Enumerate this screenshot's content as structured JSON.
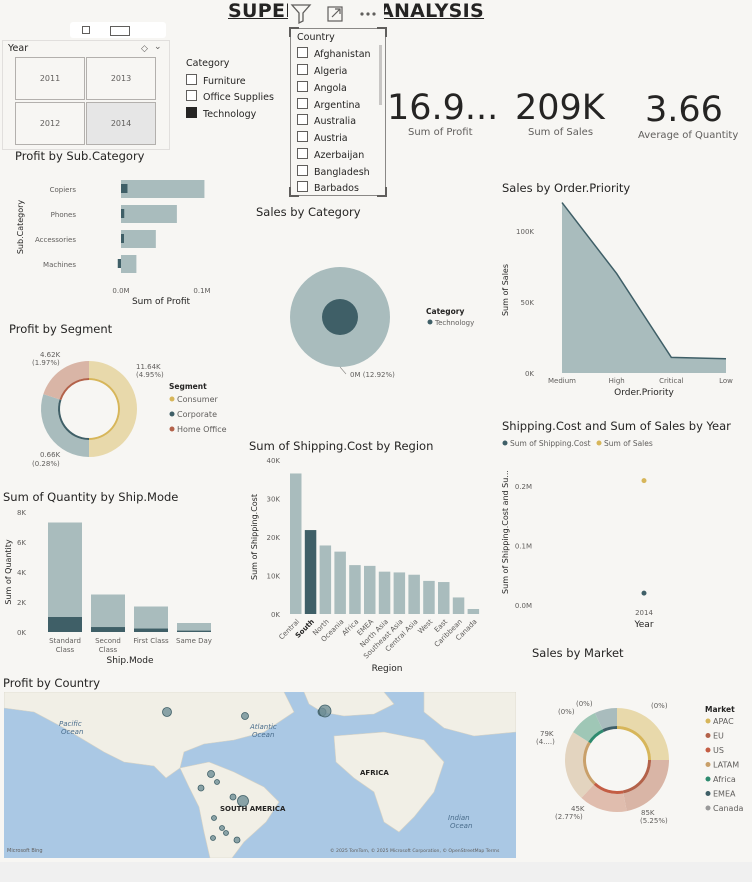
{
  "title": "SUPERSTORE ANALYSIS",
  "colors": {
    "teal": "#3f5f67",
    "sage": "#a9bcbd",
    "gold": "#d7b65a",
    "goldlight": "#e8d9ab",
    "rust": "#b3624a",
    "rose": "#d9b5a6",
    "green": "#2e8b6f"
  },
  "year_slicer": {
    "title": "Year",
    "years": [
      "2011",
      "2013",
      "2012",
      "2014"
    ],
    "selected": "2014"
  },
  "category_slicer": {
    "title": "Category",
    "items": [
      "Furniture",
      "Office Supplies",
      "Technology"
    ],
    "selected": "Technology"
  },
  "country_slicer": {
    "title": "Country",
    "items": [
      "Afghanistan",
      "Algeria",
      "Angola",
      "Argentina",
      "Australia",
      "Austria",
      "Azerbaijan",
      "Bangladesh",
      "Barbados"
    ]
  },
  "kpis": [
    {
      "value": "16.9...",
      "label": "Sum of Profit"
    },
    {
      "value": "209K",
      "label": "Sum of Sales"
    },
    {
      "value": "3.66",
      "label": "Average of Quantity"
    }
  ],
  "visuals": {
    "profit_subcat": "Profit by Sub.Category",
    "sales_category": "Sales by Category",
    "sales_priority": "Sales by Order.Priority",
    "profit_segment": "Profit by Segment",
    "shipping_region": "Sum of Shipping.Cost by Region",
    "shipping_year": "Shipping.Cost and Sum of Sales by Year",
    "qty_shipmode": "Sum of Quantity by Ship.Mode",
    "sales_market": "Sales by Market",
    "profit_country": "Profit by Country"
  },
  "chart_data": [
    {
      "type": "bar",
      "orientation": "horizontal",
      "title": "Profit by Sub.Category",
      "categories": [
        "Copiers",
        "Phones",
        "Accessories",
        "Machines"
      ],
      "series": [
        {
          "values": [
            0.103,
            0.069,
            0.043,
            0.019
          ]
        },
        {
          "values": [
            0.008,
            0.004,
            0.003,
            -0.004
          ]
        }
      ],
      "xlabel": "Sum of Profit",
      "ylabel": "Sub.Category",
      "xticks": [
        "0.0M",
        "0.1M"
      ],
      "xlim": [
        0,
        0.1
      ]
    },
    {
      "type": "pie",
      "title": "Sales by Category",
      "legend_title": "Category",
      "slices": [
        {
          "name": "Technology",
          "label": "0M (12.92%)"
        }
      ]
    },
    {
      "type": "area",
      "title": "Sales by Order.Priority",
      "categories": [
        "Medium",
        "High",
        "Critical",
        "Low"
      ],
      "values": [
        120000,
        70000,
        11000,
        10000
      ],
      "xlabel": "Order.Priority",
      "ylabel": "Sum of Sales",
      "yticks": [
        "0K",
        "50K",
        "100K"
      ],
      "ylim": [
        0,
        100000
      ]
    },
    {
      "type": "pie",
      "title": "Profit by Segment",
      "legend_title": "Segment",
      "slices": [
        {
          "name": "Consumer",
          "value": 11640,
          "label": "11.64K",
          "pct": "(4.95%)"
        },
        {
          "name": "Corporate",
          "value": 660,
          "label": "0.66K",
          "pct": "(0.28%)"
        },
        {
          "name": "Home Office",
          "value": 4620,
          "label": "4.62K",
          "pct": "(1.97%)"
        }
      ]
    },
    {
      "type": "bar",
      "title": "Sum of Shipping.Cost by Region",
      "categories": [
        "Central",
        "South",
        "North",
        "Oceania",
        "Africa",
        "EMEA",
        "North Asia",
        "Southeast Asia",
        "Central Asia",
        "West",
        "East",
        "Caribbean",
        "Canada"
      ],
      "values": [
        36500,
        21800,
        17800,
        16200,
        12700,
        12500,
        11000,
        10800,
        10200,
        8600,
        8300,
        4300,
        1300
      ],
      "highlight": "South",
      "xlabel": "Region",
      "ylabel": "Sum of Shipping.Cost",
      "yticks": [
        "0K",
        "10K",
        "20K",
        "30K",
        "40K"
      ],
      "ylim": [
        0,
        40000
      ]
    },
    {
      "type": "scatter",
      "title": "Shipping.Cost and Sum of Sales by Year",
      "x": [
        "2014"
      ],
      "series": [
        {
          "name": "Sum of Shipping.Cost",
          "values": [
            0.02
          ]
        },
        {
          "name": "Sum of Sales",
          "values": [
            0.209
          ]
        }
      ],
      "xlabel": "Year",
      "ylabel": "Sum of Shipping.Cost and Su...",
      "yticks": [
        "0.0M",
        "0.1M",
        "0.2M"
      ],
      "ylim": [
        0,
        0.2
      ]
    },
    {
      "type": "bar",
      "title": "Sum of Quantity by Ship.Mode",
      "categories": [
        "Standard Class",
        "Second Class",
        "First Class",
        "Same Day"
      ],
      "series": [
        {
          "values": [
            7300,
            2500,
            1700,
            600
          ]
        },
        {
          "values": [
            1000,
            330,
            230,
            90
          ]
        }
      ],
      "xlabel": "Ship.Mode",
      "ylabel": "Sum of Quantity",
      "yticks": [
        "0K",
        "2K",
        "4K",
        "6K",
        "8K"
      ],
      "ylim": [
        0,
        8000
      ]
    },
    {
      "type": "pie",
      "title": "Sales by Market",
      "legend_title": "Market",
      "legend": [
        "APAC",
        "EU",
        "US",
        "LATAM",
        "Africa",
        "EMEA",
        "Canada"
      ],
      "labels": [
        "(0%)",
        "(0%)",
        "(0%)",
        "79K",
        "(4....)",
        "45K",
        "(2.77%)",
        "85K",
        "(5.25%)"
      ]
    }
  ],
  "map": {
    "labels": [
      "Pacific",
      "Ocean",
      "Atlantic",
      "Ocean",
      "AFRICA",
      "SOUTH AMERICA",
      "Indian",
      "Ocean"
    ],
    "credit": "© 2025 TomTom, © 2025 Microsoft Corporation, © OpenStreetMap  Terms",
    "logo": "Microsoft Bing"
  },
  "segment_legend": [
    "Consumer",
    "Corporate",
    "Home Office"
  ],
  "toolbar": {
    "filter": "filter-icon",
    "focus": "focus-icon",
    "more": "···"
  }
}
